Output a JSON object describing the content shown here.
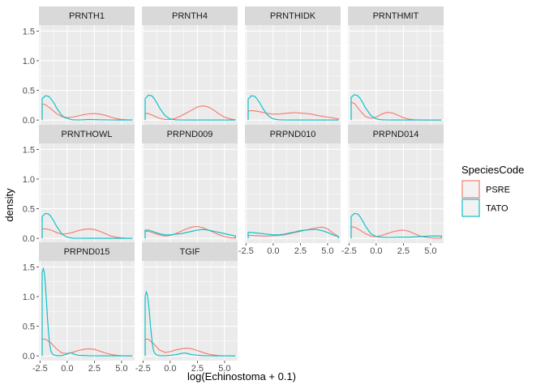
{
  "chart_data": {
    "type": "area",
    "xlabel": "log(Echinostoma + 0.1)",
    "ylabel": "density",
    "xlim": [
      -2.6,
      6.2
    ],
    "ylim": [
      -0.08,
      1.6
    ],
    "x_ticks": [
      -2.5,
      0,
      2.5,
      5
    ],
    "x_tick_labels": [
      "-2.5",
      "0.0",
      "2.5",
      "5.0"
    ],
    "y_ticks": [
      0,
      0.5,
      1,
      1.5
    ],
    "y_tick_labels": [
      "0.0",
      "0.5",
      "1.0",
      "1.5"
    ],
    "grid": true,
    "legend": {
      "title": "SpeciesCode",
      "position": "right",
      "entries": [
        {
          "name": "PSRE",
          "color": "#F8766D"
        },
        {
          "name": "TATO",
          "color": "#00BFC4"
        }
      ]
    },
    "panels": [
      {
        "name": "PRNTH1",
        "series": [
          {
            "name": "PSRE",
            "x": [
              -2.3,
              -2.3,
              -2.0,
              -1.5,
              -1.0,
              -0.5,
              0.0,
              0.5,
              1.0,
              1.5,
              2.0,
              2.5,
              3.0,
              3.5,
              4.0,
              4.5,
              5.0,
              5.5,
              6.0
            ],
            "y": [
              0,
              0.27,
              0.26,
              0.19,
              0.11,
              0.06,
              0.04,
              0.05,
              0.07,
              0.09,
              0.105,
              0.11,
              0.1,
              0.08,
              0.05,
              0.025,
              0.01,
              0.005,
              0.002
            ]
          },
          {
            "name": "TATO",
            "x": [
              -2.3,
              -2.3,
              -2.0,
              -1.7,
              -1.5,
              -1.2,
              -1.0,
              -0.7,
              -0.5,
              -0.2,
              0.0,
              0.3,
              0.5,
              1.0,
              1.5,
              2.0,
              3.0,
              4.0,
              5.0,
              6.0
            ],
            "y": [
              0,
              0.36,
              0.41,
              0.4,
              0.36,
              0.28,
              0.21,
              0.13,
              0.08,
              0.04,
              0.03,
              0.01,
              0.004,
              0.002,
              0.005,
              0.01,
              0.005,
              0.002,
              0.001,
              0
            ]
          }
        ]
      },
      {
        "name": "PRNTH4",
        "series": [
          {
            "name": "PSRE",
            "x": [
              -2.3,
              -2.3,
              -2.0,
              -1.5,
              -1.0,
              -0.5,
              0.0,
              0.5,
              1.0,
              1.5,
              2.0,
              2.5,
              3.0,
              3.5,
              4.0,
              4.5,
              5.0,
              5.5,
              6.0
            ],
            "y": [
              0,
              0.11,
              0.11,
              0.07,
              0.03,
              0.01,
              0.01,
              0.03,
              0.07,
              0.12,
              0.17,
              0.22,
              0.24,
              0.22,
              0.17,
              0.1,
              0.05,
              0.02,
              0.005
            ]
          },
          {
            "name": "TATO",
            "x": [
              -2.3,
              -2.3,
              -2.0,
              -1.7,
              -1.5,
              -1.2,
              -1.0,
              -0.7,
              -0.5,
              -0.2,
              0.0,
              0.3,
              0.5,
              1.0,
              1.5,
              2.0,
              3.0,
              4.0,
              5.0,
              6.0
            ],
            "y": [
              0,
              0.36,
              0.42,
              0.41,
              0.37,
              0.28,
              0.21,
              0.13,
              0.08,
              0.04,
              0.02,
              0.01,
              0.004,
              0.002,
              0.001,
              0,
              0,
              0,
              0,
              0
            ]
          }
        ]
      },
      {
        "name": "PRNTHIDK",
        "series": [
          {
            "name": "PSRE",
            "x": [
              -2.3,
              -2.3,
              -2.0,
              -1.5,
              -1.0,
              -0.5,
              0.0,
              0.5,
              1.0,
              1.5,
              2.0,
              2.5,
              3.0,
              3.5,
              4.0,
              4.5,
              5.0,
              5.5,
              6.0
            ],
            "y": [
              0,
              0.15,
              0.16,
              0.15,
              0.13,
              0.11,
              0.1,
              0.1,
              0.11,
              0.12,
              0.125,
              0.12,
              0.11,
              0.1,
              0.08,
              0.065,
              0.05,
              0.035,
              0.02
            ]
          },
          {
            "name": "TATO",
            "x": [
              -2.3,
              -2.3,
              -2.0,
              -1.7,
              -1.5,
              -1.2,
              -1.0,
              -0.7,
              -0.5,
              -0.2,
              0.0,
              0.3,
              0.5,
              1.0,
              1.5,
              2.0,
              3.0,
              4.0,
              5.0,
              6.0
            ],
            "y": [
              0,
              0.35,
              0.41,
              0.4,
              0.36,
              0.28,
              0.21,
              0.13,
              0.08,
              0.04,
              0.02,
              0.01,
              0.004,
              0.002,
              0.001,
              0,
              0,
              0,
              0,
              0
            ]
          }
        ]
      },
      {
        "name": "PRNTHMIT",
        "series": [
          {
            "name": "PSRE",
            "x": [
              -2.3,
              -2.3,
              -2.0,
              -1.5,
              -1.0,
              -0.5,
              0.0,
              0.5,
              1.0,
              1.5,
              2.0,
              2.5,
              3.0,
              3.5,
              4.0,
              4.5,
              5.0,
              5.5,
              6.0
            ],
            "y": [
              0,
              0.3,
              0.28,
              0.16,
              0.06,
              0.03,
              0.05,
              0.1,
              0.13,
              0.12,
              0.08,
              0.04,
              0.015,
              0.005,
              0.002,
              0.001,
              0,
              0,
              0
            ]
          },
          {
            "name": "TATO",
            "x": [
              -2.3,
              -2.3,
              -2.0,
              -1.7,
              -1.5,
              -1.2,
              -1.0,
              -0.7,
              -0.5,
              -0.2,
              0.0,
              0.3,
              0.5,
              1.0,
              1.5,
              2.0,
              3.0,
              4.0,
              5.0,
              6.0
            ],
            "y": [
              0,
              0.38,
              0.43,
              0.41,
              0.37,
              0.28,
              0.21,
              0.13,
              0.08,
              0.04,
              0.02,
              0.01,
              0.004,
              0.002,
              0.001,
              0,
              0,
              0,
              0,
              0
            ]
          }
        ]
      },
      {
        "name": "PRNTHOWL",
        "series": [
          {
            "name": "PSRE",
            "x": [
              -2.3,
              -2.3,
              -2.0,
              -1.5,
              -1.0,
              -0.5,
              0.0,
              0.5,
              1.0,
              1.5,
              2.0,
              2.5,
              3.0,
              3.5,
              4.0,
              4.5,
              5.0,
              5.5,
              6.0
            ],
            "y": [
              0,
              0.16,
              0.16,
              0.14,
              0.1,
              0.07,
              0.08,
              0.1,
              0.13,
              0.15,
              0.16,
              0.15,
              0.12,
              0.08,
              0.04,
              0.02,
              0.007,
              0.002,
              0.001
            ]
          },
          {
            "name": "TATO",
            "x": [
              -2.3,
              -2.3,
              -2.0,
              -1.7,
              -1.5,
              -1.2,
              -1.0,
              -0.7,
              -0.5,
              -0.2,
              0.0,
              0.3,
              0.5,
              1.0,
              1.5,
              2.0,
              3.0,
              4.0,
              5.0,
              6.0
            ],
            "y": [
              0,
              0.37,
              0.42,
              0.41,
              0.37,
              0.28,
              0.21,
              0.13,
              0.08,
              0.04,
              0.02,
              0.01,
              0.004,
              0.002,
              0.001,
              0,
              0,
              0,
              0,
              0
            ]
          }
        ]
      },
      {
        "name": "PRPND009",
        "series": [
          {
            "name": "PSRE",
            "x": [
              -2.3,
              -2.3,
              -2.0,
              -1.5,
              -1.0,
              -0.5,
              0.0,
              0.5,
              1.0,
              1.5,
              2.0,
              2.5,
              3.0,
              3.5,
              4.0,
              4.5,
              5.0,
              5.5,
              6.0
            ],
            "y": [
              0,
              0.12,
              0.12,
              0.09,
              0.06,
              0.04,
              0.05,
              0.08,
              0.12,
              0.16,
              0.19,
              0.2,
              0.18,
              0.14,
              0.1,
              0.06,
              0.03,
              0.01,
              0.003
            ]
          },
          {
            "name": "TATO",
            "x": [
              -2.3,
              -2.3,
              -2.0,
              -1.5,
              -1.0,
              -0.5,
              0.0,
              0.5,
              1.0,
              1.5,
              2.0,
              2.5,
              3.0,
              3.5,
              4.0,
              4.5,
              5.0,
              5.5,
              6.0
            ],
            "y": [
              0,
              0.14,
              0.14,
              0.11,
              0.08,
              0.06,
              0.06,
              0.07,
              0.08,
              0.1,
              0.12,
              0.14,
              0.15,
              0.14,
              0.12,
              0.1,
              0.08,
              0.06,
              0.04
            ]
          }
        ]
      },
      {
        "name": "PRPND010",
        "series": [
          {
            "name": "PSRE",
            "x": [
              -2.3,
              -2.3,
              -2.0,
              -1.5,
              -1.0,
              -0.5,
              0.0,
              0.5,
              1.0,
              1.5,
              2.0,
              2.5,
              3.0,
              3.5,
              4.0,
              4.5,
              5.0,
              5.5,
              6.0
            ],
            "y": [
              0,
              0.05,
              0.05,
              0.045,
              0.04,
              0.04,
              0.045,
              0.05,
              0.06,
              0.08,
              0.1,
              0.12,
              0.14,
              0.16,
              0.18,
              0.19,
              0.16,
              0.09,
              0.03
            ]
          },
          {
            "name": "TATO",
            "x": [
              -2.3,
              -2.3,
              -2.0,
              -1.5,
              -1.0,
              -0.5,
              0.0,
              0.5,
              1.0,
              1.5,
              2.0,
              2.5,
              3.0,
              3.5,
              4.0,
              4.5,
              5.0,
              5.5,
              6.0
            ],
            "y": [
              0,
              0.1,
              0.1,
              0.09,
              0.08,
              0.07,
              0.06,
              0.06,
              0.07,
              0.09,
              0.11,
              0.13,
              0.14,
              0.15,
              0.15,
              0.13,
              0.1,
              0.06,
              0.03
            ]
          }
        ]
      },
      {
        "name": "PRPND014",
        "series": [
          {
            "name": "PSRE",
            "x": [
              -2.3,
              -2.3,
              -2.0,
              -1.5,
              -1.0,
              -0.5,
              0.0,
              0.5,
              1.0,
              1.5,
              2.0,
              2.5,
              3.0,
              3.5,
              4.0,
              4.5,
              5.0,
              5.5,
              6.0
            ],
            "y": [
              0,
              0.19,
              0.19,
              0.14,
              0.08,
              0.04,
              0.03,
              0.05,
              0.08,
              0.11,
              0.13,
              0.14,
              0.12,
              0.08,
              0.04,
              0.02,
              0.007,
              0.002,
              0.001
            ]
          },
          {
            "name": "TATO",
            "x": [
              -2.3,
              -2.3,
              -2.0,
              -1.7,
              -1.5,
              -1.2,
              -1.0,
              -0.7,
              -0.5,
              -0.2,
              0.0,
              0.5,
              1.0,
              1.5,
              2.0,
              2.5,
              3.0,
              4.0,
              5.0,
              6.0
            ],
            "y": [
              0,
              0.37,
              0.42,
              0.41,
              0.37,
              0.28,
              0.21,
              0.13,
              0.08,
              0.05,
              0.03,
              0.02,
              0.015,
              0.015,
              0.02,
              0.02,
              0.02,
              0.03,
              0.04,
              0.04
            ]
          }
        ]
      },
      {
        "name": "PRPND015",
        "series": [
          {
            "name": "PSRE",
            "x": [
              -2.3,
              -2.3,
              -2.0,
              -1.5,
              -1.0,
              -0.5,
              0.0,
              0.5,
              1.0,
              1.5,
              2.0,
              2.5,
              3.0,
              3.5,
              4.0,
              4.5,
              5.0,
              5.5,
              6.0
            ],
            "y": [
              0,
              0.28,
              0.28,
              0.22,
              0.12,
              0.05,
              0.04,
              0.06,
              0.09,
              0.11,
              0.12,
              0.11,
              0.08,
              0.05,
              0.025,
              0.01,
              0.004,
              0.001,
              0
            ]
          },
          {
            "name": "TATO",
            "x": [
              -2.3,
              -2.3,
              -2.2,
              -2.1,
              -2.0,
              -1.9,
              -1.8,
              -1.7,
              -1.6,
              -1.5,
              -1.3,
              -1.0,
              -0.5,
              0.0,
              0.2,
              0.4,
              0.6,
              1.0,
              2.0,
              4.0,
              6.0
            ],
            "y": [
              0,
              1.4,
              1.47,
              1.4,
              1.2,
              0.9,
              0.6,
              0.35,
              0.18,
              0.08,
              0.02,
              0.005,
              0.005,
              0.03,
              0.05,
              0.05,
              0.03,
              0.01,
              0.003,
              0,
              0
            ]
          }
        ]
      },
      {
        "name": "TGIF",
        "series": [
          {
            "name": "PSRE",
            "x": [
              -2.3,
              -2.3,
              -2.0,
              -1.5,
              -1.0,
              -0.5,
              0.0,
              0.5,
              1.0,
              1.5,
              2.0,
              2.5,
              3.0,
              3.5,
              4.0,
              4.5,
              5.0,
              5.5,
              6.0
            ],
            "y": [
              0,
              0.28,
              0.28,
              0.2,
              0.1,
              0.06,
              0.07,
              0.1,
              0.12,
              0.13,
              0.12,
              0.09,
              0.06,
              0.03,
              0.015,
              0.005,
              0.002,
              0.001,
              0
            ]
          },
          {
            "name": "TATO",
            "x": [
              -2.3,
              -2.3,
              -2.2,
              -2.1,
              -2.0,
              -1.9,
              -1.8,
              -1.7,
              -1.6,
              -1.5,
              -1.3,
              -1.0,
              -0.5,
              0.0,
              0.5,
              1.0,
              1.3,
              1.6,
              2.0,
              3.0,
              4.0,
              6.0
            ],
            "y": [
              0,
              1.0,
              1.08,
              1.03,
              0.9,
              0.7,
              0.48,
              0.3,
              0.15,
              0.07,
              0.02,
              0.005,
              0.002,
              0.01,
              0.02,
              0.04,
              0.05,
              0.04,
              0.02,
              0.005,
              0,
              0
            ]
          }
        ]
      }
    ]
  }
}
